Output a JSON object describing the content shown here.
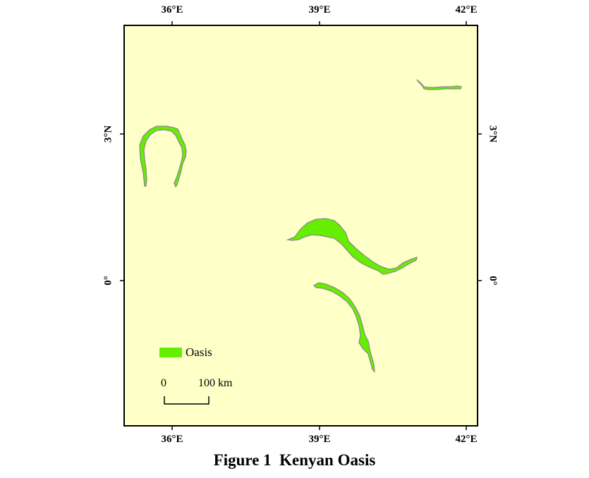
{
  "map": {
    "background_color": "#FFFFC8",
    "feature_color": "#66EE00",
    "feature_outline_color": "#8A8A8A",
    "longitude_ticks": [
      "36°E",
      "39°E",
      "42°E"
    ],
    "latitude_ticks": [
      "3°N",
      "0°"
    ]
  },
  "legend": {
    "label": "Oasis"
  },
  "scale_bar": {
    "start_label": "0",
    "end_label": "100 km"
  },
  "caption": "Figure 1  Kenyan Oasis"
}
